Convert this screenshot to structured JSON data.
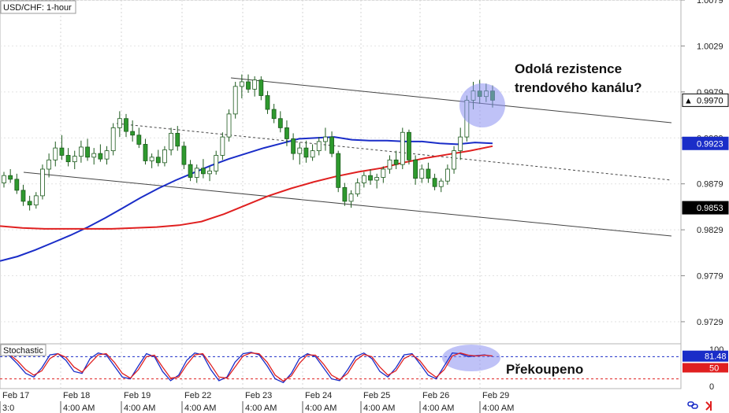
{
  "chart_data": [
    {
      "type": "candlestick",
      "title": "USD/CHF: 1-hour",
      "ylim": [
        0.9705,
        1.0079
      ],
      "y_ticks": [
        "1.0079",
        "1.0029",
        "0.9979",
        "0.9929",
        "0.9879",
        "0.9829",
        "0.9779",
        "0.9729"
      ],
      "price_tags": [
        {
          "label": "0.9970",
          "value": 0.997,
          "color": "#000000",
          "text_color": "#000000",
          "bg": "#ffffff",
          "marker": "▲"
        },
        {
          "label": "0.9923",
          "value": 0.9923,
          "color": "#1a2dc8",
          "text_color": "#ffffff",
          "bg": "#1a2dc8",
          "marker": ""
        },
        {
          "label": "0.9853",
          "value": 0.9853,
          "color": "#000000",
          "text_color": "#ffffff",
          "bg": "#000000",
          "marker": ""
        }
      ],
      "series": [
        {
          "kind": "ohlc",
          "color": "#2e9a2e",
          "values": [
            [
              0.988,
              0.9892,
              0.9875,
              0.9888
            ],
            [
              0.9888,
              0.9895,
              0.988,
              0.9884
            ],
            [
              0.9884,
              0.989,
              0.9868,
              0.9872
            ],
            [
              0.9872,
              0.9878,
              0.9855,
              0.986
            ],
            [
              0.986,
              0.9866,
              0.985,
              0.9856
            ],
            [
              0.9856,
              0.987,
              0.9852,
              0.9866
            ],
            [
              0.9866,
              0.99,
              0.9862,
              0.9895
            ],
            [
              0.9895,
              0.9912,
              0.9886,
              0.9905
            ],
            [
              0.9905,
              0.9925,
              0.9898,
              0.9918
            ],
            [
              0.9918,
              0.9932,
              0.9905,
              0.991
            ],
            [
              0.991,
              0.9918,
              0.9898,
              0.9903
            ],
            [
              0.9903,
              0.9915,
              0.9895,
              0.9909
            ],
            [
              0.9909,
              0.9926,
              0.9902,
              0.9919
            ],
            [
              0.9919,
              0.9928,
              0.9904,
              0.9908
            ],
            [
              0.9908,
              0.9918,
              0.99,
              0.9912
            ],
            [
              0.9912,
              0.9922,
              0.9903,
              0.9906
            ],
            [
              0.9906,
              0.992,
              0.99,
              0.9915
            ],
            [
              0.9915,
              0.9945,
              0.991,
              0.994
            ],
            [
              0.994,
              0.9958,
              0.993,
              0.995
            ],
            [
              0.995,
              0.9955,
              0.993,
              0.9936
            ],
            [
              0.9936,
              0.9948,
              0.9925,
              0.9932
            ],
            [
              0.9932,
              0.994,
              0.9918,
              0.9922
            ],
            [
              0.9922,
              0.9928,
              0.99,
              0.9904
            ],
            [
              0.9904,
              0.9912,
              0.9896,
              0.9908
            ],
            [
              0.9908,
              0.9916,
              0.9898,
              0.9902
            ],
            [
              0.9902,
              0.992,
              0.9898,
              0.9916
            ],
            [
              0.9916,
              0.994,
              0.991,
              0.9934
            ],
            [
              0.9934,
              0.9942,
              0.9915,
              0.992
            ],
            [
              0.992,
              0.9925,
              0.9895,
              0.99
            ],
            [
              0.99,
              0.9905,
              0.9882,
              0.9886
            ],
            [
              0.9886,
              0.99,
              0.988,
              0.9896
            ],
            [
              0.9896,
              0.9906,
              0.9885,
              0.989
            ],
            [
              0.989,
              0.9898,
              0.9882,
              0.9893
            ],
            [
              0.9893,
              0.9915,
              0.9889,
              0.991
            ],
            [
              0.991,
              0.9935,
              0.9905,
              0.993
            ],
            [
              0.993,
              0.996,
              0.9925,
              0.9955
            ],
            [
              0.9955,
              0.999,
              0.995,
              0.9985
            ],
            [
              0.9985,
              0.9998,
              0.9972,
              0.999
            ],
            [
              0.999,
              0.9998,
              0.9978,
              0.9982
            ],
            [
              0.9982,
              0.9996,
              0.9974,
              0.9992
            ],
            [
              0.9992,
              0.9996,
              0.997,
              0.9975
            ],
            [
              0.9975,
              0.998,
              0.9955,
              0.996
            ],
            [
              0.996,
              0.9966,
              0.9945,
              0.995
            ],
            [
              0.995,
              0.9958,
              0.9935,
              0.994
            ],
            [
              0.994,
              0.9948,
              0.992,
              0.9928
            ],
            [
              0.9928,
              0.9934,
              0.9905,
              0.9912
            ],
            [
              0.9912,
              0.9924,
              0.99,
              0.9918
            ],
            [
              0.9918,
              0.9926,
              0.9902,
              0.9908
            ],
            [
              0.9908,
              0.9922,
              0.9904,
              0.9915
            ],
            [
              0.9915,
              0.993,
              0.991,
              0.9925
            ],
            [
              0.9925,
              0.994,
              0.9915,
              0.993
            ],
            [
              0.993,
              0.9936,
              0.9908,
              0.9912
            ],
            [
              0.9912,
              0.9915,
              0.987,
              0.9875
            ],
            [
              0.9875,
              0.988,
              0.9855,
              0.986
            ],
            [
              0.986,
              0.9872,
              0.9853,
              0.9868
            ],
            [
              0.9868,
              0.9885,
              0.9865,
              0.988
            ],
            [
              0.988,
              0.9892,
              0.9875,
              0.9888
            ],
            [
              0.9888,
              0.9895,
              0.9878,
              0.9883
            ],
            [
              0.9883,
              0.989,
              0.9874,
              0.9886
            ],
            [
              0.9886,
              0.9898,
              0.988,
              0.9895
            ],
            [
              0.9895,
              0.991,
              0.989,
              0.9905
            ],
            [
              0.9905,
              0.9915,
              0.9895,
              0.99
            ],
            [
              0.99,
              0.994,
              0.9895,
              0.9935
            ],
            [
              0.9935,
              0.9938,
              0.99,
              0.9905
            ],
            [
              0.9905,
              0.991,
              0.9878,
              0.9885
            ],
            [
              0.9885,
              0.99,
              0.988,
              0.9895
            ],
            [
              0.9895,
              0.9902,
              0.988,
              0.9885
            ],
            [
              0.9885,
              0.989,
              0.9872,
              0.9876
            ],
            [
              0.9876,
              0.9885,
              0.987,
              0.9882
            ],
            [
              0.9882,
              0.99,
              0.9878,
              0.9895
            ],
            [
              0.9895,
              0.992,
              0.989,
              0.9915
            ],
            [
              0.9915,
              0.994,
              0.9905,
              0.993
            ],
            [
              0.993,
              0.9975,
              0.9925,
              0.997
            ],
            [
              0.997,
              0.999,
              0.996,
              0.998
            ],
            [
              0.998,
              0.9992,
              0.9966,
              0.9974
            ],
            [
              0.9974,
              0.9988,
              0.9968,
              0.998
            ],
            [
              0.998,
              0.9986,
              0.9962,
              0.997
            ]
          ]
        },
        {
          "kind": "line",
          "color": "#1a2dc8",
          "values": [
            0.9795,
            0.98,
            0.9807,
            0.9815,
            0.9823,
            0.9832,
            0.9842,
            0.9853,
            0.9864,
            0.9874,
            0.9883,
            0.9891,
            0.9899,
            0.9906,
            0.9912,
            0.9918,
            0.9923,
            0.9928,
            0.9929,
            0.993,
            0.9927,
            0.9926,
            0.9926,
            0.9925,
            0.9925,
            0.9923,
            0.9922,
            0.9924,
            0.9923
          ]
        },
        {
          "kind": "line",
          "color": "#e02020",
          "values": [
            0.9833,
            0.9831,
            0.983,
            0.983,
            0.983,
            0.983,
            0.9831,
            0.9832,
            0.9834,
            0.9838,
            0.9846,
            0.9856,
            0.9866,
            0.9874,
            0.9881,
            0.9887,
            0.9892,
            0.9896,
            0.9902,
            0.9907,
            0.9911,
            0.9915,
            0.992
          ]
        }
      ],
      "annotations": [
        {
          "text": "Odolá rezistence",
          "value": 1.0035
        },
        {
          "text": "trendového kanálu?",
          "value": 1.0009
        }
      ]
    },
    {
      "type": "line",
      "title": "Stochastic",
      "ylim": [
        0,
        100
      ],
      "y_ticks": [
        "100",
        "50",
        "0"
      ],
      "levels": [
        80,
        20
      ],
      "value_tag": "81.48",
      "series": [
        {
          "color": "#1a2dc8",
          "values": [
            88,
            82,
            60,
            35,
            25,
            50,
            85,
            88,
            70,
            40,
            35,
            75,
            90,
            85,
            55,
            25,
            20,
            55,
            88,
            80,
            40,
            15,
            30,
            70,
            90,
            85,
            45,
            15,
            25,
            65,
            88,
            92,
            85,
            55,
            20,
            10,
            35,
            75,
            88,
            80,
            50,
            20,
            15,
            45,
            80,
            90,
            75,
            40,
            25,
            50,
            85,
            88,
            60,
            30,
            20,
            55,
            90,
            88,
            80,
            83,
            85,
            81
          ]
        },
        {
          "color": "#e02020",
          "values": [
            90,
            86,
            68,
            45,
            30,
            42,
            75,
            88,
            78,
            52,
            38,
            62,
            85,
            88,
            65,
            35,
            22,
            45,
            80,
            84,
            52,
            22,
            25,
            58,
            85,
            88,
            58,
            25,
            22,
            52,
            82,
            90,
            88,
            65,
            30,
            14,
            28,
            62,
            85,
            84,
            60,
            30,
            18,
            35,
            70,
            86,
            80,
            52,
            30,
            42,
            75,
            86,
            68,
            40,
            24,
            45,
            82,
            90,
            84,
            82,
            84,
            82
          ]
        }
      ],
      "annotations": [
        {
          "text": "Překoupeno"
        }
      ]
    }
  ],
  "x_axis": {
    "dates": [
      "Feb 17",
      "Feb 18",
      "Feb 19",
      "Feb 22",
      "Feb 23",
      "Feb 24",
      "Feb 25",
      "Feb 26",
      "Feb 29"
    ],
    "times": [
      "3:0",
      "4:00 AM",
      "4:00 AM",
      "4:00 AM",
      "4:00 AM",
      "4:00 AM",
      "4:00 AM",
      "4:00 AM",
      "4:00 AM"
    ]
  },
  "toolbar": {
    "link_icon": "link-icon",
    "arrow_icon": "arrow-right-icon",
    "link_color": "#1a2dc8",
    "arrow_color": "#e02020"
  }
}
